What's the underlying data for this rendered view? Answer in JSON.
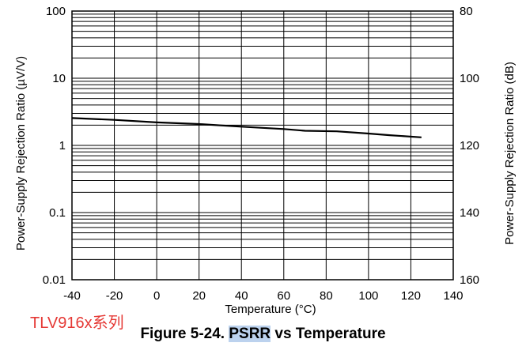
{
  "chart_data": {
    "type": "line",
    "title": "",
    "xlabel": "Temperature (°C)",
    "ylabel": "Power-Supply Rejection Ratio (µV/V)",
    "y2label": "Power-Supply Rejection Ratio (dB)",
    "xlim": [
      -40,
      140
    ],
    "ylim": [
      0.01,
      100
    ],
    "y2lim": [
      80,
      160
    ],
    "yscale": "log",
    "grid": true,
    "x_ticks": [
      "-40",
      "-20",
      "0",
      "20",
      "40",
      "60",
      "80",
      "100",
      "120",
      "140"
    ],
    "y_ticks": [
      "0.01",
      "0.1",
      "1",
      "10",
      "100"
    ],
    "y2_ticks": [
      "160",
      "140",
      "120",
      "100",
      "80"
    ],
    "series": [
      {
        "x": [
          -40,
          -20,
          0,
          20,
          40,
          60,
          70,
          85,
          100,
          110,
          125
        ],
        "y": [
          2.55,
          2.4,
          2.2,
          2.08,
          1.9,
          1.75,
          1.65,
          1.62,
          1.5,
          1.42,
          1.32
        ]
      }
    ]
  },
  "annotation": "TLV916x系列",
  "caption": {
    "prefix": "Figure 5-24. ",
    "highlight": "PSRR",
    "suffix": " vs Temperature"
  },
  "colors": {
    "annotation": "#e53935",
    "highlight": "#bcd2ee",
    "line": "#000000"
  }
}
